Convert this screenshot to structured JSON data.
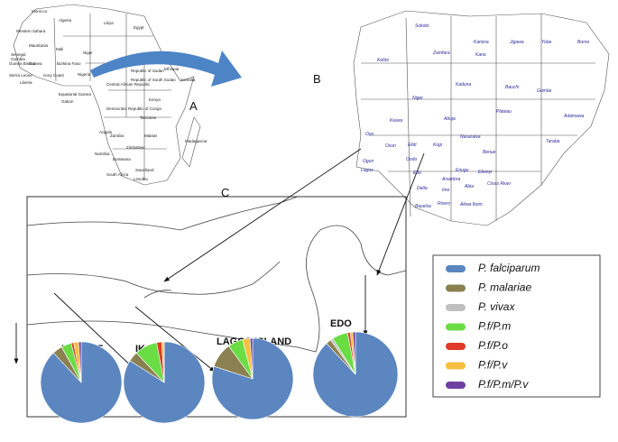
{
  "panels": [
    "A",
    "B",
    "C"
  ],
  "africa_labels": [
    "Morocco",
    "Algeria",
    "Libya",
    "Egypt",
    "Western Sahara",
    "Mauritania",
    "Mali",
    "Niger",
    "Senegal",
    "Gambia",
    "Guinea Bissau",
    "Guinea",
    "Sierra Leone",
    "Liberia",
    "Ivory Coast",
    "Burkina Faso",
    "Nigeria",
    "Republic of Sudan",
    "Ethiopia",
    "Somalia",
    "Central African Republic",
    "Republic of South Sudan",
    "Equatorial Guinea",
    "Gabon",
    "Democratic Republic of Congo",
    "Kenya",
    "Tanzania",
    "Angola",
    "Zambia",
    "Malawi",
    "Namibia",
    "Botswana",
    "Zimbabwe",
    "Swaziland",
    "South Africa",
    "Lesotho",
    "Madagascar"
  ],
  "nigeria_labels": [
    "Sokoto",
    "Katsina",
    "Jigawa",
    "Yobe",
    "Borno",
    "Zamfara",
    "Kano",
    "Kebbi",
    "Kaduna",
    "Bauchi",
    "Gombe",
    "Niger",
    "Plateau",
    "Adamawa",
    "Abuja",
    "Nasarawa",
    "Kwara",
    "Taraba",
    "Oyo",
    "Osun",
    "Ekiti",
    "Kogi",
    "Benue",
    "Ogun",
    "Ondo",
    "Lagos",
    "Edo",
    "Enugu",
    "Ebonyi",
    "Anambra",
    "Delta",
    "Imo",
    "Abia",
    "Cross River",
    "Rivers",
    "Akwa Ibom",
    "Bayelsa"
  ],
  "legend": {
    "names": [
      "P. falciparum",
      "P. malariae",
      "P. vivax",
      "P.f/P.m",
      "P.f/P.o",
      "P.f/P.v",
      "P.f/P.m/P.v"
    ],
    "colors": [
      "#5b86c0",
      "#8b8050",
      "#c0c0c0",
      "#6add44",
      "#e03a2a",
      "#f5c040",
      "#7040a0"
    ]
  },
  "chart_data": [
    {
      "type": "pie",
      "title": "KOSOFE",
      "values": [
        88,
        4,
        0,
        4,
        1,
        2,
        1
      ]
    },
    {
      "type": "pie",
      "title": "IKORODU",
      "values": [
        84,
        4,
        0,
        9,
        2,
        1,
        0
      ]
    },
    {
      "type": "pie",
      "title": "LAGOS ISLAND",
      "values": [
        80,
        10,
        0,
        6,
        0,
        3,
        1
      ]
    },
    {
      "type": "pie",
      "title": "EDO",
      "values": [
        88,
        2,
        1,
        6,
        1,
        1,
        1
      ]
    }
  ]
}
